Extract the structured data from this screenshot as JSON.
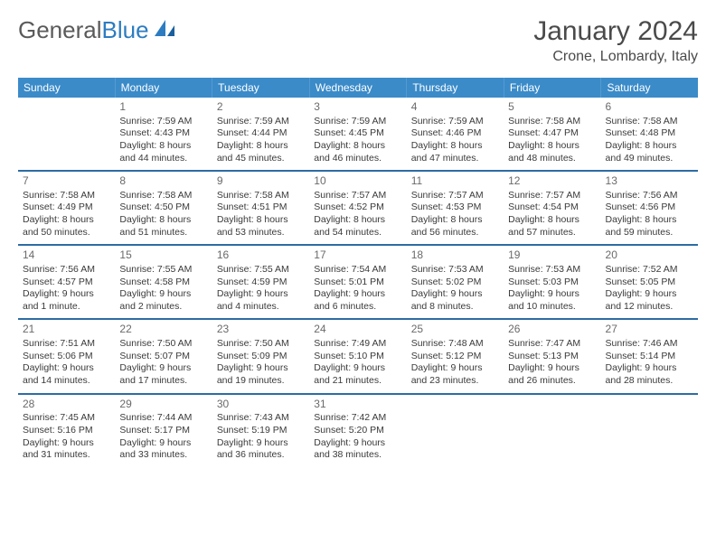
{
  "logo": {
    "text1": "General",
    "text2": "Blue"
  },
  "title": "January 2024",
  "location": "Crone, Lombardy, Italy",
  "colors": {
    "header_bg": "#3b8bc9",
    "week_divider": "#2d6ca3",
    "text": "#3a3a3a",
    "title_text": "#4a4a4a",
    "logo_gray": "#5a5a5a",
    "logo_blue": "#2d7cc1",
    "background": "#ffffff"
  },
  "day_names": [
    "Sunday",
    "Monday",
    "Tuesday",
    "Wednesday",
    "Thursday",
    "Friday",
    "Saturday"
  ],
  "weeks": [
    [
      {},
      {
        "n": "1",
        "sr": "Sunrise: 7:59 AM",
        "ss": "Sunset: 4:43 PM",
        "d1": "Daylight: 8 hours",
        "d2": "and 44 minutes."
      },
      {
        "n": "2",
        "sr": "Sunrise: 7:59 AM",
        "ss": "Sunset: 4:44 PM",
        "d1": "Daylight: 8 hours",
        "d2": "and 45 minutes."
      },
      {
        "n": "3",
        "sr": "Sunrise: 7:59 AM",
        "ss": "Sunset: 4:45 PM",
        "d1": "Daylight: 8 hours",
        "d2": "and 46 minutes."
      },
      {
        "n": "4",
        "sr": "Sunrise: 7:59 AM",
        "ss": "Sunset: 4:46 PM",
        "d1": "Daylight: 8 hours",
        "d2": "and 47 minutes."
      },
      {
        "n": "5",
        "sr": "Sunrise: 7:58 AM",
        "ss": "Sunset: 4:47 PM",
        "d1": "Daylight: 8 hours",
        "d2": "and 48 minutes."
      },
      {
        "n": "6",
        "sr": "Sunrise: 7:58 AM",
        "ss": "Sunset: 4:48 PM",
        "d1": "Daylight: 8 hours",
        "d2": "and 49 minutes."
      }
    ],
    [
      {
        "n": "7",
        "sr": "Sunrise: 7:58 AM",
        "ss": "Sunset: 4:49 PM",
        "d1": "Daylight: 8 hours",
        "d2": "and 50 minutes."
      },
      {
        "n": "8",
        "sr": "Sunrise: 7:58 AM",
        "ss": "Sunset: 4:50 PM",
        "d1": "Daylight: 8 hours",
        "d2": "and 51 minutes."
      },
      {
        "n": "9",
        "sr": "Sunrise: 7:58 AM",
        "ss": "Sunset: 4:51 PM",
        "d1": "Daylight: 8 hours",
        "d2": "and 53 minutes."
      },
      {
        "n": "10",
        "sr": "Sunrise: 7:57 AM",
        "ss": "Sunset: 4:52 PM",
        "d1": "Daylight: 8 hours",
        "d2": "and 54 minutes."
      },
      {
        "n": "11",
        "sr": "Sunrise: 7:57 AM",
        "ss": "Sunset: 4:53 PM",
        "d1": "Daylight: 8 hours",
        "d2": "and 56 minutes."
      },
      {
        "n": "12",
        "sr": "Sunrise: 7:57 AM",
        "ss": "Sunset: 4:54 PM",
        "d1": "Daylight: 8 hours",
        "d2": "and 57 minutes."
      },
      {
        "n": "13",
        "sr": "Sunrise: 7:56 AM",
        "ss": "Sunset: 4:56 PM",
        "d1": "Daylight: 8 hours",
        "d2": "and 59 minutes."
      }
    ],
    [
      {
        "n": "14",
        "sr": "Sunrise: 7:56 AM",
        "ss": "Sunset: 4:57 PM",
        "d1": "Daylight: 9 hours",
        "d2": "and 1 minute."
      },
      {
        "n": "15",
        "sr": "Sunrise: 7:55 AM",
        "ss": "Sunset: 4:58 PM",
        "d1": "Daylight: 9 hours",
        "d2": "and 2 minutes."
      },
      {
        "n": "16",
        "sr": "Sunrise: 7:55 AM",
        "ss": "Sunset: 4:59 PM",
        "d1": "Daylight: 9 hours",
        "d2": "and 4 minutes."
      },
      {
        "n": "17",
        "sr": "Sunrise: 7:54 AM",
        "ss": "Sunset: 5:01 PM",
        "d1": "Daylight: 9 hours",
        "d2": "and 6 minutes."
      },
      {
        "n": "18",
        "sr": "Sunrise: 7:53 AM",
        "ss": "Sunset: 5:02 PM",
        "d1": "Daylight: 9 hours",
        "d2": "and 8 minutes."
      },
      {
        "n": "19",
        "sr": "Sunrise: 7:53 AM",
        "ss": "Sunset: 5:03 PM",
        "d1": "Daylight: 9 hours",
        "d2": "and 10 minutes."
      },
      {
        "n": "20",
        "sr": "Sunrise: 7:52 AM",
        "ss": "Sunset: 5:05 PM",
        "d1": "Daylight: 9 hours",
        "d2": "and 12 minutes."
      }
    ],
    [
      {
        "n": "21",
        "sr": "Sunrise: 7:51 AM",
        "ss": "Sunset: 5:06 PM",
        "d1": "Daylight: 9 hours",
        "d2": "and 14 minutes."
      },
      {
        "n": "22",
        "sr": "Sunrise: 7:50 AM",
        "ss": "Sunset: 5:07 PM",
        "d1": "Daylight: 9 hours",
        "d2": "and 17 minutes."
      },
      {
        "n": "23",
        "sr": "Sunrise: 7:50 AM",
        "ss": "Sunset: 5:09 PM",
        "d1": "Daylight: 9 hours",
        "d2": "and 19 minutes."
      },
      {
        "n": "24",
        "sr": "Sunrise: 7:49 AM",
        "ss": "Sunset: 5:10 PM",
        "d1": "Daylight: 9 hours",
        "d2": "and 21 minutes."
      },
      {
        "n": "25",
        "sr": "Sunrise: 7:48 AM",
        "ss": "Sunset: 5:12 PM",
        "d1": "Daylight: 9 hours",
        "d2": "and 23 minutes."
      },
      {
        "n": "26",
        "sr": "Sunrise: 7:47 AM",
        "ss": "Sunset: 5:13 PM",
        "d1": "Daylight: 9 hours",
        "d2": "and 26 minutes."
      },
      {
        "n": "27",
        "sr": "Sunrise: 7:46 AM",
        "ss": "Sunset: 5:14 PM",
        "d1": "Daylight: 9 hours",
        "d2": "and 28 minutes."
      }
    ],
    [
      {
        "n": "28",
        "sr": "Sunrise: 7:45 AM",
        "ss": "Sunset: 5:16 PM",
        "d1": "Daylight: 9 hours",
        "d2": "and 31 minutes."
      },
      {
        "n": "29",
        "sr": "Sunrise: 7:44 AM",
        "ss": "Sunset: 5:17 PM",
        "d1": "Daylight: 9 hours",
        "d2": "and 33 minutes."
      },
      {
        "n": "30",
        "sr": "Sunrise: 7:43 AM",
        "ss": "Sunset: 5:19 PM",
        "d1": "Daylight: 9 hours",
        "d2": "and 36 minutes."
      },
      {
        "n": "31",
        "sr": "Sunrise: 7:42 AM",
        "ss": "Sunset: 5:20 PM",
        "d1": "Daylight: 9 hours",
        "d2": "and 38 minutes."
      },
      {},
      {},
      {}
    ]
  ]
}
